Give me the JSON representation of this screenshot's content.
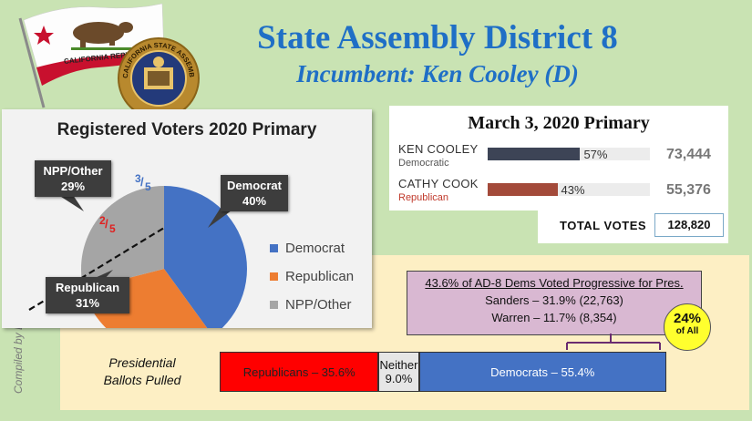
{
  "title": "State Assembly District 8",
  "subtitle": "Incumbent: Ken Cooley (D)",
  "credit": "Compiled by Burdick Research",
  "flag": {
    "text": "CALIFORNIA REPUBLIC"
  },
  "seal": {
    "text": "CALIFORNIA STATE ASSEMBLY"
  },
  "chart_data": [
    {
      "type": "pie",
      "title": "Registered Voters 2020 Primary",
      "slices": [
        {
          "label": "Democrat",
          "value": 40,
          "color": "#4472c4",
          "callout": "Democrat\n40%"
        },
        {
          "label": "Republican",
          "value": 31,
          "color": "#ed7d31",
          "callout": "Republican\n31%"
        },
        {
          "label": "NPP/Other",
          "value": 29,
          "color": "#a5a5a5",
          "callout": "NPP/Other\n29%"
        }
      ],
      "legend": [
        "Democrat",
        "Republican",
        "NPP/Other"
      ],
      "legend_position": "right",
      "annotations": {
        "upper": "3/5",
        "lower": "2/5"
      }
    },
    {
      "type": "bar",
      "title": "March 3, 2020 Primary",
      "candidates": [
        {
          "name": "KEN COOLEY",
          "party": "Democratic",
          "percent": 57,
          "percent_label": "57%",
          "votes": "73,444",
          "color": "#3d4456",
          "party_color": "#555555"
        },
        {
          "name": "CATHY COOK",
          "party": "Republican",
          "percent": 43,
          "percent_label": "43%",
          "votes": "55,376",
          "color": "#a34a3a",
          "party_color": "#c0392b"
        }
      ],
      "total_label": "TOTAL VOTES",
      "total_votes": "128,820"
    },
    {
      "type": "bar",
      "title": "Presidential Ballots Pulled",
      "segments": [
        {
          "label": "Republicans – 35.6%",
          "value": 35.6,
          "color": "#ff0000",
          "text_color": "#222222"
        },
        {
          "label": "Neither\n9.0%",
          "value": 9.0,
          "color": "#e6e6e6",
          "text_color": "#111111"
        },
        {
          "label": "Democrats – 55.4%",
          "value": 55.4,
          "color": "#4472c4",
          "text_color": "#ffffff"
        }
      ]
    }
  ],
  "progressive": {
    "headline": "43.6% of AD-8 Dems Voted Progressive for Pres.",
    "line1": "Sanders – 31.9% (22,763)",
    "line2": "Warren – 11.7% (8,354)"
  },
  "badge": {
    "main": "24%",
    "sub": "of All"
  },
  "ballots_label": {
    "line1": "Presidential",
    "line2": "Ballots Pulled"
  }
}
